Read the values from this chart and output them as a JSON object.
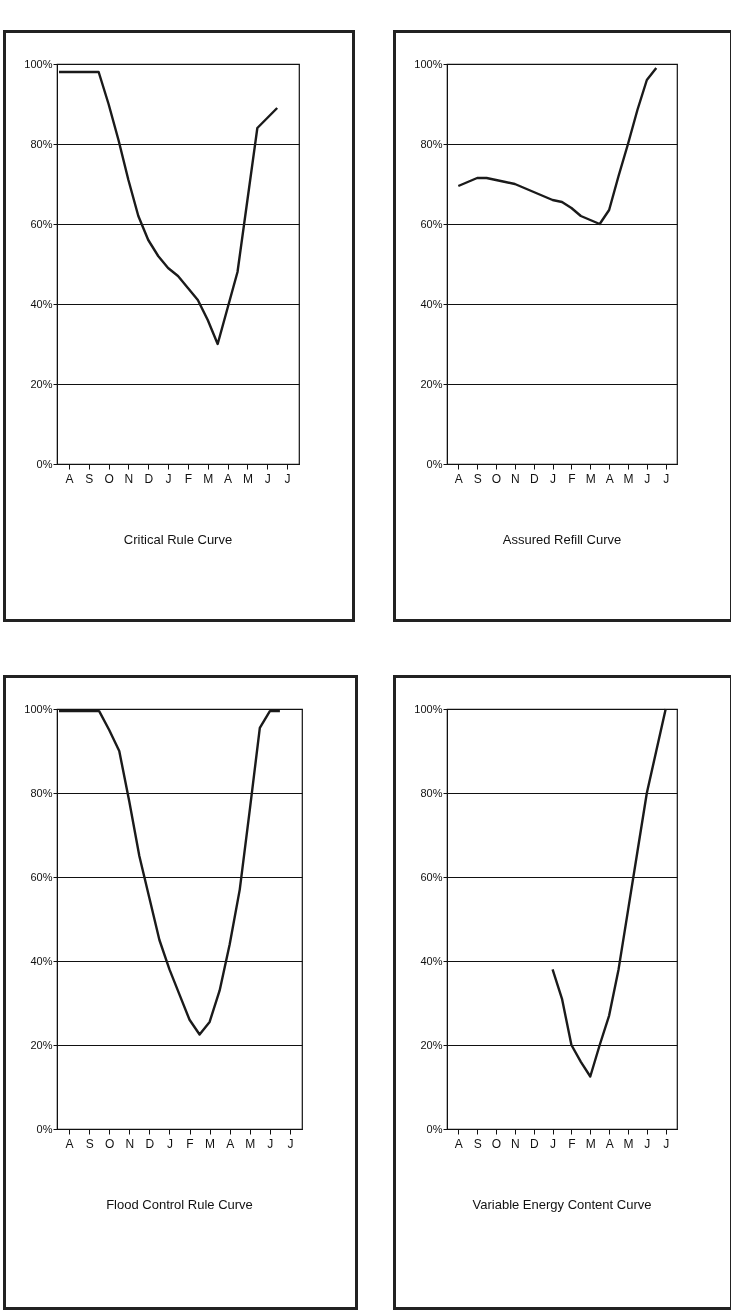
{
  "chart_data": [
    {
      "type": "line",
      "title": "Critical Rule Curve",
      "grid": "y",
      "ylim": [
        0,
        100
      ],
      "categories": [
        null,
        "A",
        null,
        "S",
        null,
        "O",
        null,
        "N",
        null,
        "D",
        null,
        "J",
        null,
        "F",
        null,
        "M",
        null,
        "A",
        null,
        "M",
        null,
        "J",
        null,
        "J",
        null
      ],
      "yticks": [
        {
          "value": 0,
          "label": "0%"
        },
        {
          "value": 20,
          "label": "20%"
        },
        {
          "value": 40,
          "label": "40%"
        },
        {
          "value": 60,
          "label": "60%"
        },
        {
          "value": 80,
          "label": "80%"
        },
        {
          "value": 100,
          "label": "100%"
        }
      ],
      "series": [
        {
          "color": "#1a1a1a",
          "values": [
            98,
            98,
            98,
            98,
            98,
            90,
            81,
            71,
            62,
            56,
            52,
            49,
            47,
            44,
            41,
            36,
            30,
            39,
            48,
            66,
            84,
            86.5,
            89,
            null,
            null
          ]
        }
      ]
    },
    {
      "type": "line",
      "title": "Assured Refill Curve",
      "grid": "y",
      "ylim": [
        0,
        100
      ],
      "categories": [
        null,
        "A",
        null,
        "S",
        null,
        "O",
        null,
        "N",
        null,
        "D",
        null,
        "J",
        null,
        "F",
        null,
        "M",
        null,
        "A",
        null,
        "M",
        null,
        "J",
        null,
        "J",
        null
      ],
      "yticks": [
        {
          "value": 0,
          "label": "0%"
        },
        {
          "value": 20,
          "label": "20%"
        },
        {
          "value": 40,
          "label": "40%"
        },
        {
          "value": 60,
          "label": "60%"
        },
        {
          "value": 80,
          "label": "80%"
        },
        {
          "value": 100,
          "label": "100%"
        }
      ],
      "series": [
        {
          "color": "#1a1a1a",
          "values": [
            null,
            69.5,
            70.5,
            71.5,
            71.5,
            71,
            70.5,
            70,
            69,
            68,
            67,
            66,
            65.5,
            64,
            62,
            61,
            60,
            63.5,
            72,
            80,
            88.5,
            96,
            99,
            null,
            null
          ]
        }
      ]
    },
    {
      "type": "line",
      "title": "Flood Control Rule Curve",
      "grid": "y",
      "ylim": [
        0,
        100
      ],
      "categories": [
        null,
        "A",
        null,
        "S",
        null,
        "O",
        null,
        "N",
        null,
        "D",
        null,
        "J",
        null,
        "F",
        null,
        "M",
        null,
        "A",
        null,
        "M",
        null,
        "J",
        null,
        "J",
        null
      ],
      "yticks": [
        {
          "value": 0,
          "label": "0%"
        },
        {
          "value": 20,
          "label": "20%"
        },
        {
          "value": 40,
          "label": "40%"
        },
        {
          "value": 60,
          "label": "60%"
        },
        {
          "value": 80,
          "label": "80%"
        },
        {
          "value": 100,
          "label": "100%"
        }
      ],
      "series": [
        {
          "color": "#1a1a1a",
          "values": [
            99.5,
            99.5,
            99.5,
            99.5,
            99.5,
            95,
            90,
            78,
            65,
            55,
            45,
            38,
            32,
            26,
            22.5,
            25.5,
            33,
            44,
            57,
            76,
            95.5,
            99.5,
            99.5,
            null,
            null
          ]
        }
      ]
    },
    {
      "type": "line",
      "title": "Variable Energy Content Curve",
      "grid": "y",
      "ylim": [
        0,
        100
      ],
      "categories": [
        null,
        "A",
        null,
        "S",
        null,
        "O",
        null,
        "N",
        null,
        "D",
        null,
        "J",
        null,
        "F",
        null,
        "M",
        null,
        "A",
        null,
        "M",
        null,
        "J",
        null,
        "J",
        null
      ],
      "yticks": [
        {
          "value": 0,
          "label": "0%"
        },
        {
          "value": 20,
          "label": "20%"
        },
        {
          "value": 40,
          "label": "40%"
        },
        {
          "value": 60,
          "label": "60%"
        },
        {
          "value": 80,
          "label": "80%"
        },
        {
          "value": 100,
          "label": "100%"
        }
      ],
      "series": [
        {
          "color": "#1a1a1a",
          "values": [
            null,
            null,
            null,
            null,
            null,
            null,
            null,
            null,
            null,
            null,
            null,
            38,
            31,
            20,
            16,
            12.5,
            20,
            27,
            38,
            52,
            66,
            80,
            90,
            100,
            null
          ]
        }
      ]
    }
  ]
}
